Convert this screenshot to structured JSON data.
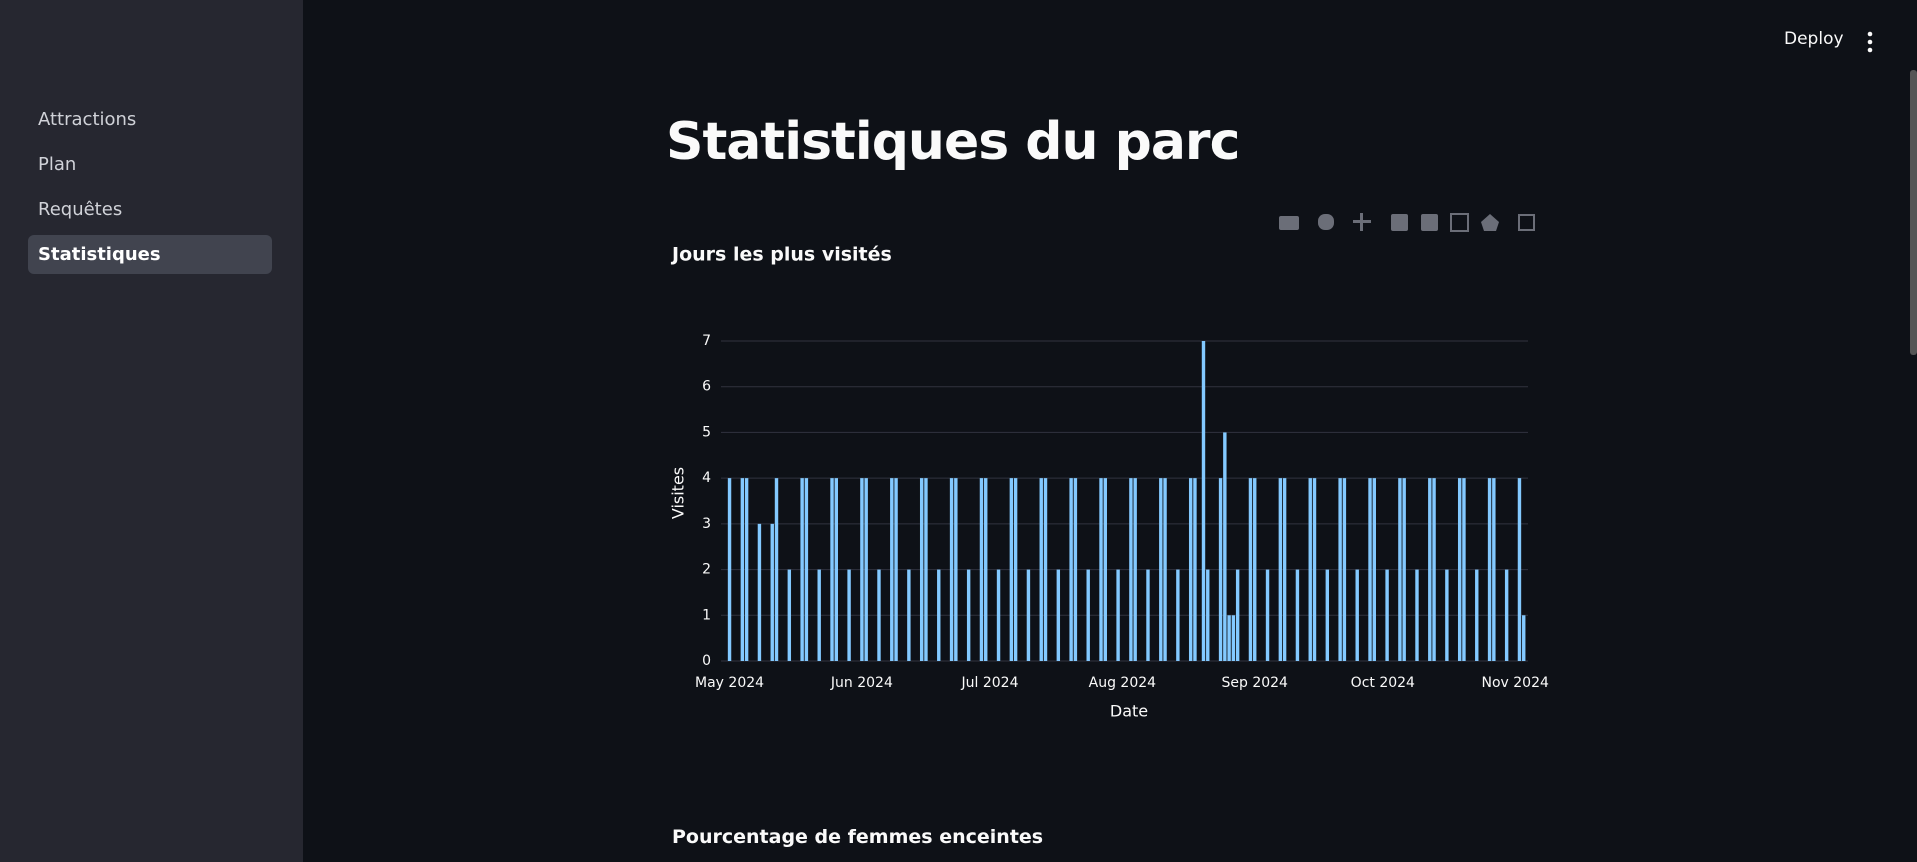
{
  "app": {
    "deploy": "Deploy",
    "nav": {
      "items": [
        "Attractions",
        "Plan",
        "Requêtes",
        "Statistiques"
      ],
      "active": 3
    },
    "title": "Statistiques du parc",
    "next_section": "Pourcentage de femmes enceintes"
  },
  "chart_data": {
    "type": "bar",
    "title": "Jours les plus visités",
    "x_label": "Date",
    "y_label": "Visites",
    "color": "#83c9ff",
    "grid": true,
    "x": [
      "2024-05-01",
      "2024-05-04",
      "2024-05-05",
      "2024-05-08",
      "2024-05-11",
      "2024-05-12",
      "2024-05-15",
      "2024-05-18",
      "2024-05-19",
      "2024-05-22",
      "2024-05-25",
      "2024-05-26",
      "2024-05-29",
      "2024-06-01",
      "2024-06-02",
      "2024-06-05",
      "2024-06-08",
      "2024-06-09",
      "2024-06-12",
      "2024-06-15",
      "2024-06-16",
      "2024-06-19",
      "2024-06-22",
      "2024-06-23",
      "2024-06-26",
      "2024-06-29",
      "2024-06-30",
      "2024-07-03",
      "2024-07-06",
      "2024-07-07",
      "2024-07-10",
      "2024-07-13",
      "2024-07-14",
      "2024-07-17",
      "2024-07-20",
      "2024-07-21",
      "2024-07-24",
      "2024-07-27",
      "2024-07-28",
      "2024-07-31",
      "2024-08-03",
      "2024-08-04",
      "2024-08-07",
      "2024-08-10",
      "2024-08-11",
      "2024-08-14",
      "2024-08-17",
      "2024-08-18",
      "2024-08-20",
      "2024-08-21",
      "2024-08-24",
      "2024-08-25",
      "2024-08-26",
      "2024-08-27",
      "2024-08-28",
      "2024-08-31",
      "2024-09-01",
      "2024-09-04",
      "2024-09-07",
      "2024-09-08",
      "2024-09-11",
      "2024-09-14",
      "2024-09-15",
      "2024-09-18",
      "2024-09-21",
      "2024-09-22",
      "2024-09-25",
      "2024-09-28",
      "2024-09-29",
      "2024-10-02",
      "2024-10-05",
      "2024-10-06",
      "2024-10-09",
      "2024-10-12",
      "2024-10-13",
      "2024-10-16",
      "2024-10-19",
      "2024-10-20",
      "2024-10-23",
      "2024-10-26",
      "2024-10-27",
      "2024-10-30",
      "2024-11-02",
      "2024-11-03"
    ],
    "values": [
      4,
      4,
      4,
      3,
      3,
      4,
      2,
      4,
      4,
      2,
      4,
      4,
      2,
      4,
      4,
      2,
      4,
      4,
      2,
      4,
      4,
      2,
      4,
      4,
      2,
      4,
      4,
      2,
      4,
      4,
      2,
      4,
      4,
      2,
      4,
      4,
      2,
      4,
      4,
      2,
      4,
      4,
      2,
      4,
      4,
      2,
      4,
      4,
      7,
      2,
      4,
      5,
      1,
      1,
      2,
      4,
      4,
      2,
      4,
      4,
      2,
      4,
      4,
      2,
      4,
      4,
      2,
      4,
      4,
      2,
      4,
      4,
      2,
      4,
      4,
      2,
      4,
      4,
      2,
      4,
      4,
      2,
      4,
      1
    ],
    "xlim": [
      "2024-04-29",
      "2024-11-04"
    ],
    "xticks": [
      {
        "value": "2024-05-01",
        "label": "May 2024"
      },
      {
        "value": "2024-06-01",
        "label": "Jun 2024"
      },
      {
        "value": "2024-07-01",
        "label": "Jul 2024"
      },
      {
        "value": "2024-08-01",
        "label": "Aug 2024"
      },
      {
        "value": "2024-09-01",
        "label": "Sep 2024"
      },
      {
        "value": "2024-10-01",
        "label": "Oct 2024"
      },
      {
        "value": "2024-11-01",
        "label": "Nov 2024"
      }
    ],
    "ylim": [
      0,
      7
    ],
    "yticks": [
      0,
      1,
      2,
      3,
      4,
      5,
      6,
      7
    ]
  }
}
